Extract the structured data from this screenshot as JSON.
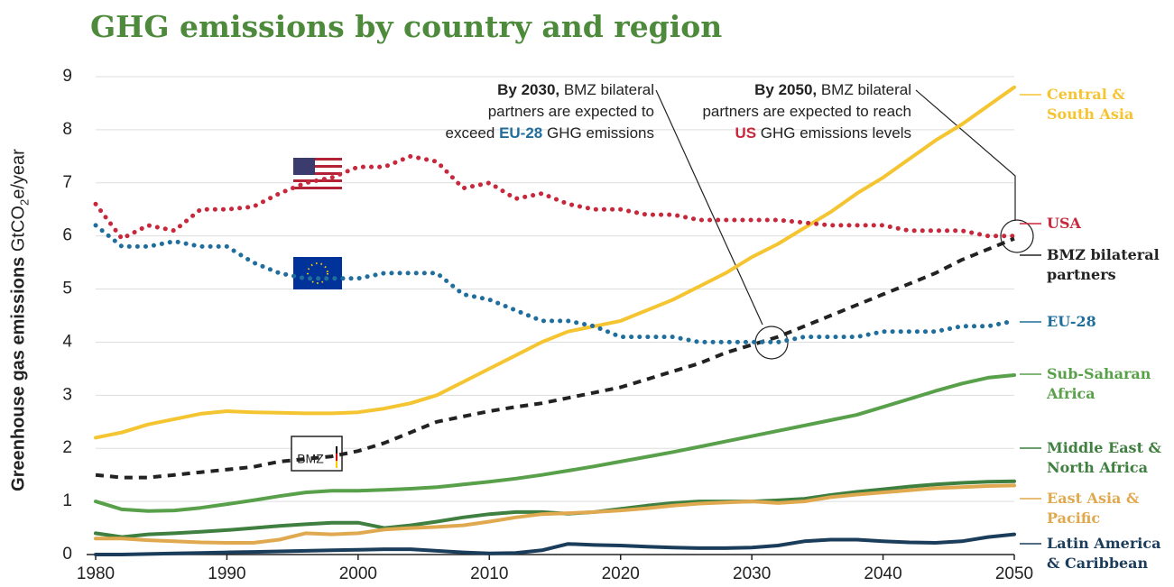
{
  "chart_data": {
    "type": "line",
    "title": "GHG emissions by country and region",
    "y_label": [
      "Greenhouse gas emissions",
      "GtCO",
      "2",
      "e/year"
    ],
    "logo_text": "BMZ",
    "annotations": [
      {
        "parts": [
          "By 2030,",
          " BMZ bilateral partners are expected to exceed ",
          "EU-28",
          " GHG emissions"
        ]
      },
      {
        "parts": [
          "By 2050,",
          " BMZ bilateral partners are expected to reach ",
          "US",
          " GHG emissions levels"
        ]
      }
    ],
    "xlim": [
      1980,
      2050
    ],
    "xticks": [
      1980,
      1990,
      2000,
      2010,
      2020,
      2030,
      2040,
      2050
    ],
    "ylim": [
      0,
      9
    ],
    "yticks": [
      0,
      1,
      2,
      3,
      4,
      5,
      6,
      7,
      8,
      9
    ],
    "grid": true,
    "x": [
      1980,
      1982,
      1984,
      1986,
      1988,
      1990,
      1992,
      1994,
      1996,
      1998,
      2000,
      2002,
      2004,
      2006,
      2008,
      2010,
      2012,
      2014,
      2016,
      2018,
      2020,
      2022,
      2024,
      2026,
      2028,
      2030,
      2032,
      2034,
      2036,
      2038,
      2040,
      2042,
      2044,
      2046,
      2048,
      2050
    ],
    "series": [
      {
        "name": "Central & South Asia",
        "color": "#f5c431",
        "dash": "solid",
        "values": [
          2.2,
          2.3,
          2.45,
          2.55,
          2.65,
          2.7,
          2.68,
          2.67,
          2.66,
          2.66,
          2.68,
          2.75,
          2.85,
          3.0,
          3.25,
          3.5,
          3.75,
          4.0,
          4.2,
          4.3,
          4.4,
          4.6,
          4.8,
          5.05,
          5.3,
          5.6,
          5.85,
          6.15,
          6.45,
          6.8,
          7.1,
          7.45,
          7.8,
          8.1,
          8.45,
          8.8
        ]
      },
      {
        "name": "USA",
        "color": "#c8283c",
        "dash": "dotted",
        "values": [
          6.6,
          5.95,
          6.2,
          6.1,
          6.5,
          6.5,
          6.55,
          6.8,
          7.0,
          7.1,
          7.3,
          7.3,
          7.5,
          7.4,
          6.9,
          7.0,
          6.7,
          6.8,
          6.6,
          6.5,
          6.5,
          6.4,
          6.4,
          6.3,
          6.3,
          6.3,
          6.3,
          6.25,
          6.2,
          6.2,
          6.2,
          6.1,
          6.1,
          6.1,
          6.0,
          6.0
        ]
      },
      {
        "name": "BMZ bilateral partners",
        "color": "#222222",
        "dash": "dashed",
        "values": [
          1.5,
          1.45,
          1.45,
          1.5,
          1.55,
          1.6,
          1.65,
          1.75,
          1.8,
          1.85,
          1.95,
          2.1,
          2.3,
          2.5,
          2.6,
          2.7,
          2.78,
          2.85,
          2.95,
          3.05,
          3.15,
          3.3,
          3.45,
          3.6,
          3.8,
          3.95,
          4.1,
          4.3,
          4.5,
          4.7,
          4.9,
          5.1,
          5.3,
          5.55,
          5.75,
          5.95
        ]
      },
      {
        "name": "EU-28",
        "color": "#1f6e9c",
        "dash": "dotted",
        "values": [
          6.2,
          5.8,
          5.8,
          5.9,
          5.8,
          5.8,
          5.5,
          5.3,
          5.2,
          5.2,
          5.2,
          5.3,
          5.3,
          5.3,
          4.9,
          4.8,
          4.6,
          4.4,
          4.4,
          4.3,
          4.1,
          4.1,
          4.1,
          4.0,
          4.0,
          4.0,
          4.0,
          4.1,
          4.1,
          4.1,
          4.2,
          4.2,
          4.2,
          4.3,
          4.3,
          4.4
        ]
      },
      {
        "name": "Sub-Saharan Africa",
        "color": "#58a04a",
        "dash": "solid",
        "values": [
          1.0,
          0.85,
          0.82,
          0.83,
          0.88,
          0.95,
          1.02,
          1.1,
          1.17,
          1.2,
          1.2,
          1.22,
          1.24,
          1.27,
          1.32,
          1.37,
          1.43,
          1.5,
          1.58,
          1.66,
          1.75,
          1.84,
          1.93,
          2.03,
          2.13,
          2.23,
          2.33,
          2.43,
          2.53,
          2.63,
          2.78,
          2.93,
          3.08,
          3.22,
          3.33,
          3.38
        ]
      },
      {
        "name": "Middle East & North Africa",
        "color": "#3f7f3f",
        "dash": "solid",
        "values": [
          0.4,
          0.33,
          0.38,
          0.4,
          0.43,
          0.46,
          0.5,
          0.54,
          0.57,
          0.6,
          0.6,
          0.5,
          0.55,
          0.62,
          0.7,
          0.76,
          0.8,
          0.8,
          0.77,
          0.8,
          0.86,
          0.92,
          0.97,
          1.0,
          1.0,
          1.0,
          1.02,
          1.05,
          1.12,
          1.18,
          1.23,
          1.28,
          1.32,
          1.35,
          1.37,
          1.38
        ]
      },
      {
        "name": "East Asia & Pacific",
        "color": "#e0a94f",
        "dash": "solid",
        "values": [
          0.3,
          0.3,
          0.27,
          0.25,
          0.23,
          0.22,
          0.22,
          0.28,
          0.4,
          0.38,
          0.4,
          0.47,
          0.5,
          0.52,
          0.55,
          0.62,
          0.7,
          0.76,
          0.78,
          0.8,
          0.83,
          0.87,
          0.92,
          0.96,
          0.98,
          1.0,
          0.97,
          1.0,
          1.08,
          1.13,
          1.17,
          1.21,
          1.25,
          1.27,
          1.29,
          1.3
        ]
      },
      {
        "name": "Latin America & Caribbean",
        "color": "#1b3d5c",
        "dash": "solid",
        "values": [
          0,
          0,
          0.01,
          0.02,
          0.03,
          0.04,
          0.05,
          0.06,
          0.07,
          0.08,
          0.09,
          0.1,
          0.1,
          0.07,
          0.04,
          0.02,
          0.03,
          0.08,
          0.2,
          0.18,
          0.17,
          0.15,
          0.13,
          0.12,
          0.12,
          0.13,
          0.17,
          0.25,
          0.28,
          0.28,
          0.25,
          0.23,
          0.22,
          0.25,
          0.33,
          0.38
        ]
      }
    ]
  }
}
